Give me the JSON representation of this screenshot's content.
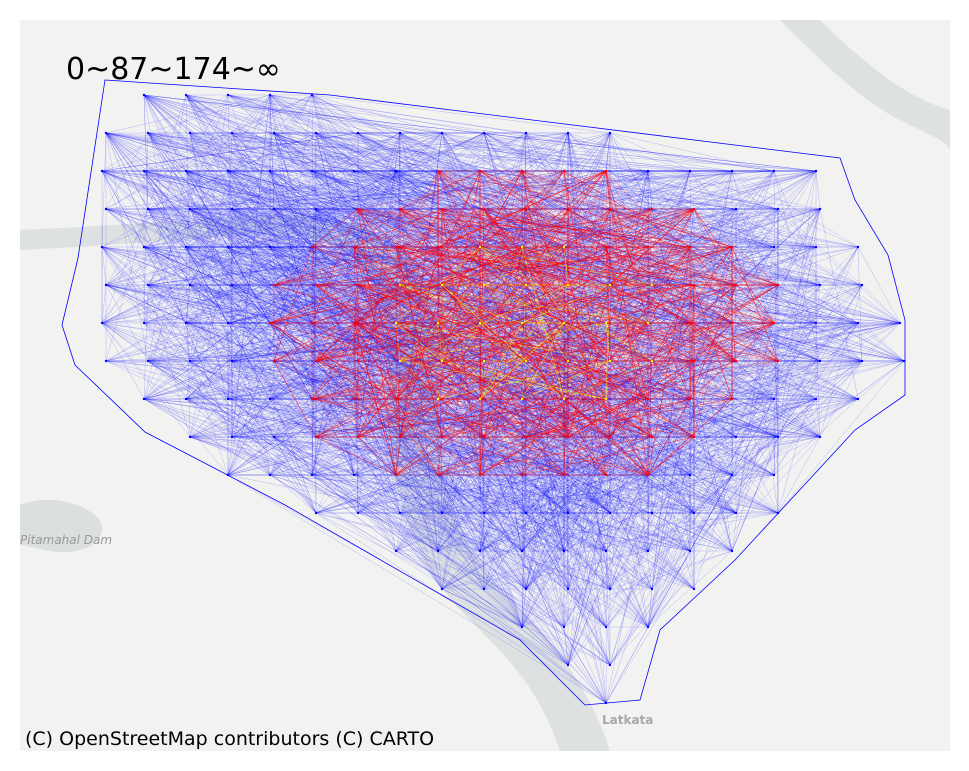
{
  "legend": {
    "text": "0~87~174~∞"
  },
  "attribution": "(C) OpenStreetMap contributors (C) CARTO",
  "places": [
    {
      "name": "Pitamahal Dam"
    },
    {
      "name": "Latkata"
    }
  ],
  "colors": {
    "map_background": "#f2f2f1",
    "water": "#d4dadc",
    "tier_low": "#0000ff",
    "tier_mid": "#ff0000",
    "tier_high": "#ffff00"
  },
  "thresholds": [
    0,
    87,
    174
  ]
}
